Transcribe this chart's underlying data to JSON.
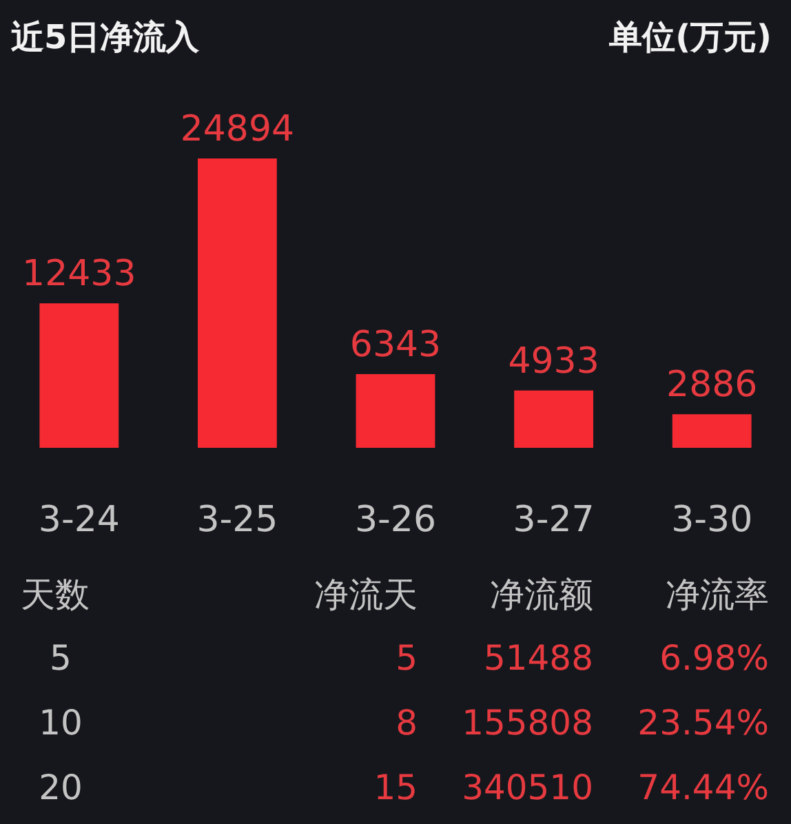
{
  "chart_data": [
    {
      "type": "bar",
      "title": "近5日净流入",
      "annotations": [
        "单位(万元)"
      ],
      "categories": [
        "3-24",
        "3-25",
        "3-26",
        "3-27",
        "3-30"
      ],
      "values": [
        12433,
        24894,
        6343,
        4933,
        2886
      ],
      "color": "#f52a33",
      "data_labels": true
    },
    {
      "type": "other",
      "ylabel": "天数",
      "categories": [
        "净流天",
        "净流额",
        "净流率"
      ],
      "y_categories": [
        "5",
        "10",
        "20"
      ],
      "cell_labels": [
        [
          "5",
          "51488",
          "6.98%"
        ],
        [
          "8",
          "155808",
          "23.54%"
        ],
        [
          "15",
          "340510",
          "74.44%"
        ]
      ]
    }
  ]
}
